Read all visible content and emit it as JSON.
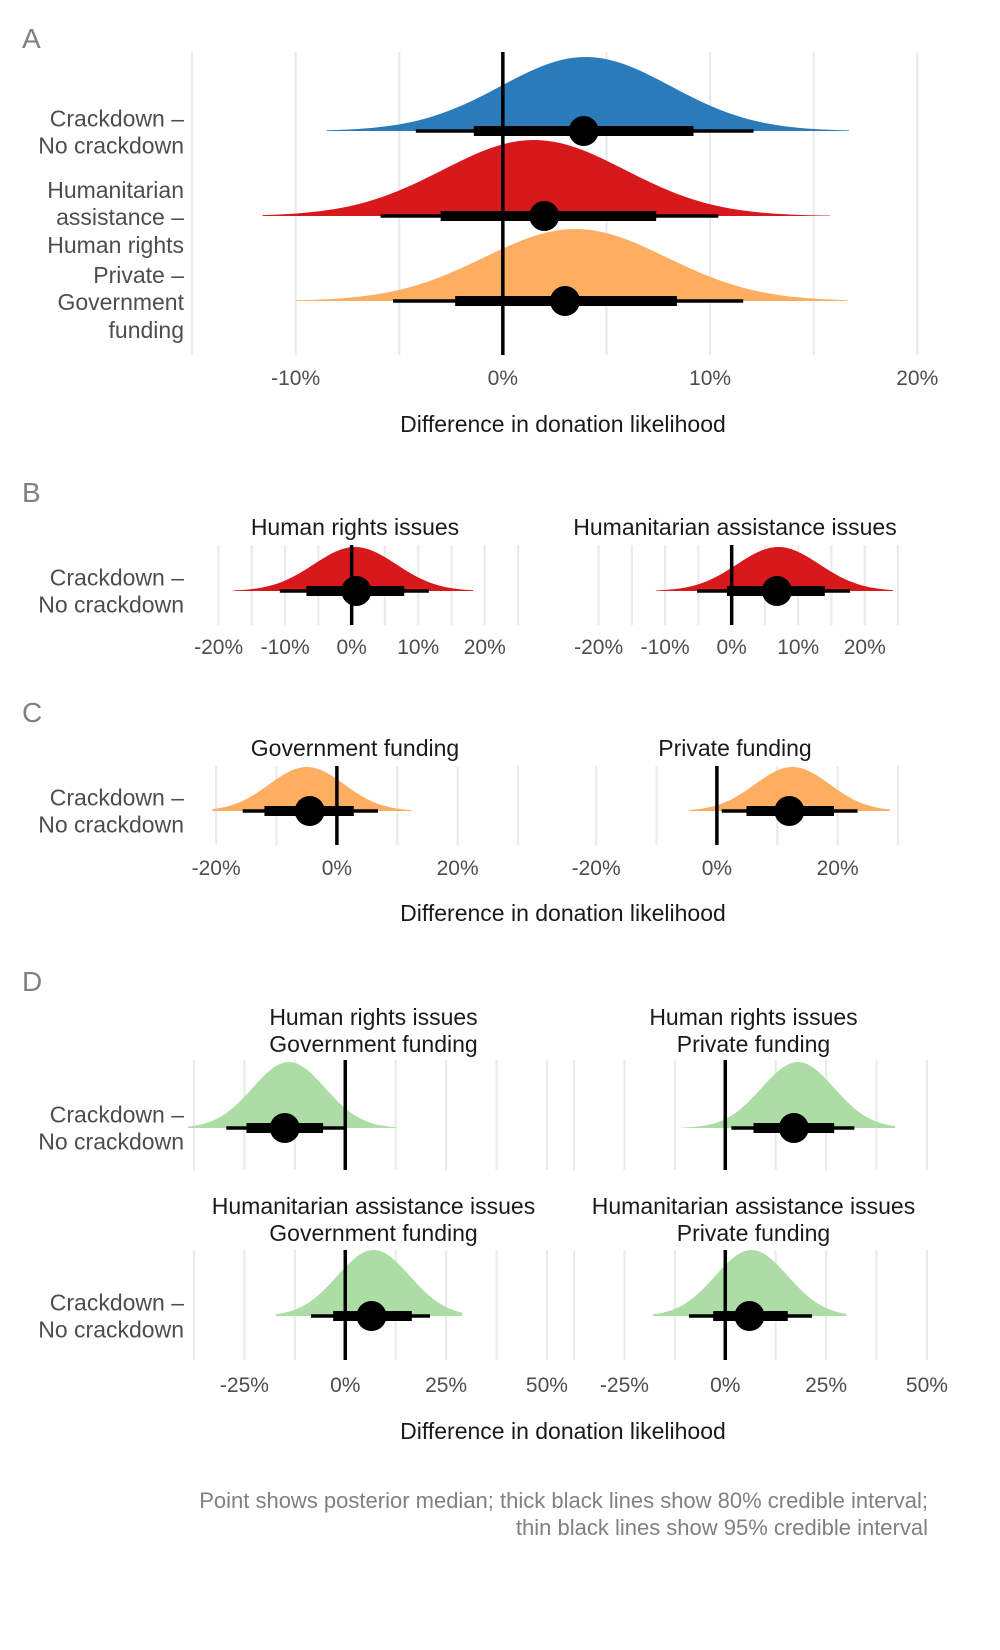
{
  "chart_data": [
    {
      "panel_tag": "A",
      "type": "halfeye",
      "xlabel": "Difference in donation likelihood",
      "xlim": [
        -15,
        21
      ],
      "ticks": [
        -10,
        0,
        10,
        20
      ],
      "tick_labels": [
        "-10%",
        "0%",
        "10%",
        "20%"
      ],
      "zero_line": 0,
      "rows": [
        {
          "label": [
            "Crackdown –",
            "No crackdown"
          ],
          "color": "#2b7bba",
          "median": 3.9,
          "ci80": [
            -1.4,
            9.2
          ],
          "ci95": [
            -4.2,
            12.1
          ],
          "dens_mean": 4,
          "dens_sd": 4.1,
          "range": [
            -8.5,
            16.7
          ]
        },
        {
          "label": [
            "Humanitarian",
            "assistance –",
            "Human rights"
          ],
          "color": "#d7191c",
          "median": 2.0,
          "ci80": [
            -3.0,
            7.4
          ],
          "ci95": [
            -5.9,
            10.4
          ],
          "dens_mean": 1.5,
          "dens_sd": 4.4,
          "range": [
            -11.6,
            15.8
          ]
        },
        {
          "label": [
            "Private –",
            "Government",
            "funding"
          ],
          "color": "#fdae61",
          "median": 3.0,
          "ci80": [
            -2.3,
            8.4
          ],
          "ci95": [
            -5.3,
            11.6
          ],
          "dens_mean": 3.5,
          "dens_sd": 4.4,
          "range": [
            -10.0,
            16.6
          ]
        }
      ]
    },
    {
      "panel_tag": "B",
      "type": "halfeye",
      "xlabel": "",
      "row_label": [
        "Crackdown –",
        "No crackdown"
      ],
      "facets": [
        {
          "title": [
            "Human rights issues"
          ],
          "xlim": [
            -24,
            25
          ],
          "ticks": [
            -20,
            -10,
            0,
            10,
            20
          ],
          "tick_labels": [
            "-20%",
            "-10%",
            "0%",
            "10%",
            "20%"
          ],
          "color": "#d7191c",
          "median": 0.7,
          "ci80": [
            -6.8,
            7.9
          ],
          "ci95": [
            -10.8,
            11.6
          ],
          "dens_mean": 0.5,
          "dens_sd": 6.2,
          "range": [
            -17.8,
            18.3
          ]
        },
        {
          "title": [
            "Humanitarian assistance issues"
          ],
          "xlim": [
            -24,
            25
          ],
          "ticks": [
            -20,
            -10,
            0,
            10,
            20
          ],
          "tick_labels": [
            "-20%",
            "-10%",
            "0%",
            "10%",
            "20%"
          ],
          "color": "#d7191c",
          "median": 6.8,
          "ci80": [
            -0.7,
            14.0
          ],
          "ci95": [
            -5.2,
            17.8
          ],
          "dens_mean": 7,
          "dens_sd": 6.2,
          "range": [
            -11.4,
            24.2
          ]
        }
      ]
    },
    {
      "panel_tag": "C",
      "type": "halfeye",
      "xlabel": "Difference in donation likelihood",
      "row_label": [
        "Crackdown –",
        "No crackdown"
      ],
      "facets": [
        {
          "title": [
            "Government funding"
          ],
          "xlim": [
            -24,
            30
          ],
          "ticks": [
            -20,
            0,
            20
          ],
          "tick_labels": [
            "-20%",
            "0%",
            "20%"
          ],
          "color": "#fdae61",
          "median": -4.5,
          "ci80": [
            -12.0,
            2.8
          ],
          "ci95": [
            -15.6,
            6.8
          ],
          "dens_mean": -5,
          "dens_sd": 6.2,
          "range": [
            -20.6,
            12.3
          ]
        },
        {
          "title": [
            "Private funding"
          ],
          "xlim": [
            -24,
            30
          ],
          "ticks": [
            -20,
            0,
            20
          ],
          "tick_labels": [
            "-20%",
            "0%",
            "20%"
          ],
          "color": "#fdae61",
          "median": 12.0,
          "ci80": [
            4.9,
            19.4
          ],
          "ci95": [
            0.8,
            23.3
          ],
          "dens_mean": 12.5,
          "dens_sd": 6.2,
          "range": [
            -4.5,
            28.7
          ]
        }
      ]
    },
    {
      "panel_tag": "D",
      "type": "halfeye",
      "xlabel": "Difference in donation likelihood",
      "row_label": [
        "Crackdown –",
        "No crackdown"
      ],
      "facets": [
        {
          "title": [
            "Human rights issues",
            "Government funding"
          ],
          "xlim": [
            -38,
            52
          ],
          "ticks": [
            -25,
            0,
            25,
            50
          ],
          "tick_labels": [
            "-25%",
            "0%",
            "25%",
            "50%"
          ],
          "color": "#abdda4",
          "median": -15.0,
          "ci80": [
            -24.5,
            -5.5
          ],
          "ci95": [
            -29.5,
            0.0
          ],
          "dens_mean": -14,
          "dens_sd": 9,
          "range": [
            -39.0,
            12.7
          ]
        },
        {
          "title": [
            "Human rights issues",
            "Private funding"
          ],
          "xlim": [
            -38,
            52
          ],
          "ticks": [
            -25,
            0,
            25,
            50
          ],
          "tick_labels": [
            "-25%",
            "0%",
            "25%",
            "50%"
          ],
          "color": "#abdda4",
          "median": 17.0,
          "ci80": [
            7.0,
            27.0
          ],
          "ci95": [
            1.5,
            32.0
          ],
          "dens_mean": 18,
          "dens_sd": 9,
          "range": [
            -10.5,
            42.1
          ]
        },
        {
          "title": [
            "Humanitarian assistance issues",
            "Government funding"
          ],
          "xlim": [
            -38,
            52
          ],
          "ticks": [
            -25,
            0,
            25,
            50
          ],
          "tick_labels": [
            "-25%",
            "0%",
            "25%",
            "50%"
          ],
          "color": "#abdda4",
          "median": 6.5,
          "ci80": [
            -3.0,
            16.5
          ],
          "ci95": [
            -8.5,
            21.0
          ],
          "dens_mean": 7,
          "dens_sd": 9,
          "range": [
            -17.2,
            29.0
          ]
        },
        {
          "title": [
            "Humanitarian assistance issues",
            "Private funding"
          ],
          "xlim": [
            -38,
            52
          ],
          "ticks": [
            -25,
            0,
            25,
            50
          ],
          "tick_labels": [
            "-25%",
            "0%",
            "25%",
            "50%"
          ],
          "color": "#abdda4",
          "median": 6.0,
          "ci80": [
            -3.0,
            15.5
          ],
          "ci95": [
            -9.0,
            21.5
          ],
          "dens_mean": 6.5,
          "dens_sd": 9,
          "range": [
            -18.0,
            30.0
          ]
        }
      ]
    }
  ],
  "caption": [
    "Point shows posterior median; thick black lines show 80% credible interval;",
    "thin black lines show 95% credible interval"
  ]
}
